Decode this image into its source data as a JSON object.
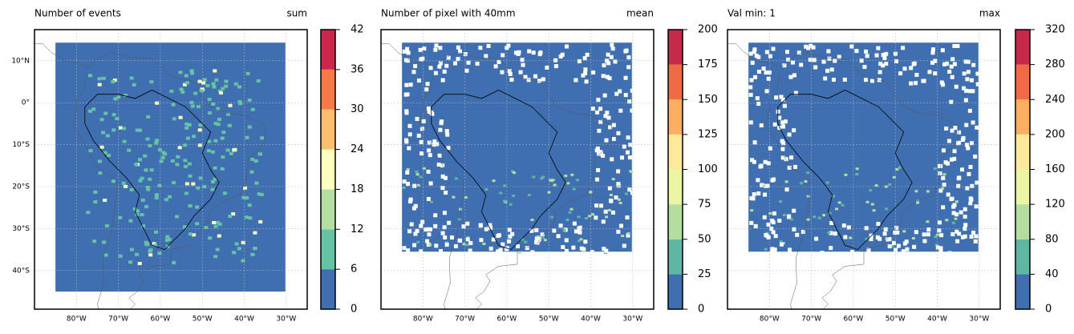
{
  "panels": [
    {
      "title_left": "Number of events",
      "title_right": "sum",
      "colorbar": {
        "lim": [
          0,
          42
        ],
        "ticks": [
          0,
          6,
          12,
          18,
          24,
          30,
          36,
          42
        ],
        "colors": [
          "#3f6fb0",
          "#66c2a5",
          "#b5dfa2",
          "#fefebe",
          "#fdbf6f",
          "#f57a48",
          "#c9284a"
        ]
      }
    },
    {
      "title_left": "Number of pixel with 40mm",
      "title_right": "mean",
      "colorbar": {
        "lim": [
          0,
          200
        ],
        "ticks": [
          0,
          25,
          50,
          75,
          100,
          125,
          150,
          175,
          200
        ],
        "colors": [
          "#3f6fb0",
          "#5db7a3",
          "#b3dea0",
          "#ebf5a3",
          "#fde99a",
          "#fdae61",
          "#ef6a45",
          "#c62a4a"
        ]
      }
    },
    {
      "title_left": "Val min: 1",
      "title_right": "max",
      "colorbar": {
        "lim": [
          0,
          320
        ],
        "ticks": [
          0,
          40,
          80,
          120,
          160,
          200,
          240,
          280,
          320
        ],
        "colors": [
          "#3f6fb0",
          "#5db7a3",
          "#b3dea0",
          "#ebf5a3",
          "#fde99a",
          "#fdae61",
          "#ef6a45",
          "#c62a4a"
        ]
      }
    }
  ],
  "map": {
    "xlim": [
      -90,
      -25
    ],
    "ylim": [
      -49.2,
      17.4
    ],
    "xticks": [
      {
        "value": -80,
        "label": "80°W"
      },
      {
        "value": -70,
        "label": "70°W"
      },
      {
        "value": -60,
        "label": "60°W"
      },
      {
        "value": -50,
        "label": "50°W"
      },
      {
        "value": -40,
        "label": "40°W"
      },
      {
        "value": -30,
        "label": "30°W"
      }
    ],
    "yticks": [
      {
        "value": 10,
        "label": "10°N"
      },
      {
        "value": 0,
        "label": "0°"
      },
      {
        "value": -10,
        "label": "10°S"
      },
      {
        "value": -20,
        "label": "20°S"
      },
      {
        "value": -30,
        "label": "30°S"
      },
      {
        "value": -40,
        "label": "40°S"
      }
    ]
  }
}
